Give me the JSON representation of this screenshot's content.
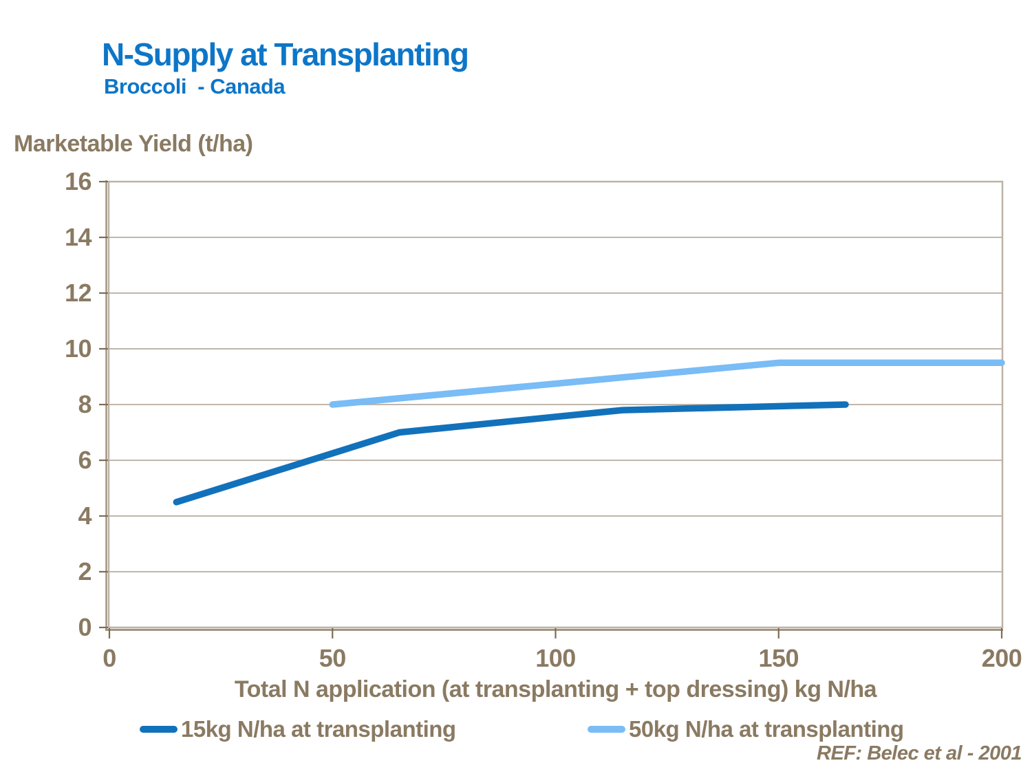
{
  "header": {
    "title": "N-Supply at Transplanting",
    "subtitle": "Broccoli  - Canada"
  },
  "footer": {
    "reference": "REF: Belec et al - 2001"
  },
  "colors": {
    "title_blue": "#0d76c8",
    "text_taupe": "#8a7a62",
    "gridline": "#c0b6aa",
    "plot_border": "#bcb2a6",
    "axis_line": "#a3957f",
    "tick_mark": "#7d6c55",
    "background": "#ffffff"
  },
  "chart_data": {
    "type": "line",
    "title": "N-Supply at Transplanting",
    "subtitle": "Broccoli - Canada",
    "xlabel": "Total N application (at transplanting + top dressing) kg N/ha",
    "ylabel": "Marketable Yield (t/ha)",
    "xlim": [
      0,
      200
    ],
    "ylim": [
      0,
      16
    ],
    "xticks": [
      0,
      50,
      100,
      150,
      200
    ],
    "yticks": [
      0,
      2,
      4,
      6,
      8,
      10,
      12,
      14,
      16
    ],
    "grid": "horizontal",
    "legend_position": "bottom",
    "series": [
      {
        "name": "15kg N/ha at transplanting",
        "id": "15kg",
        "color": "#1271bb",
        "points": [
          [
            15,
            4.5
          ],
          [
            65,
            7.0
          ],
          [
            115,
            7.8
          ],
          [
            165,
            8.0
          ]
        ]
      },
      {
        "name": "50kg N/ha at transplanting",
        "id": "50kg",
        "color": "#79bcf6",
        "points": [
          [
            50,
            8.0
          ],
          [
            150,
            9.5
          ],
          [
            200,
            9.5
          ]
        ]
      }
    ]
  }
}
